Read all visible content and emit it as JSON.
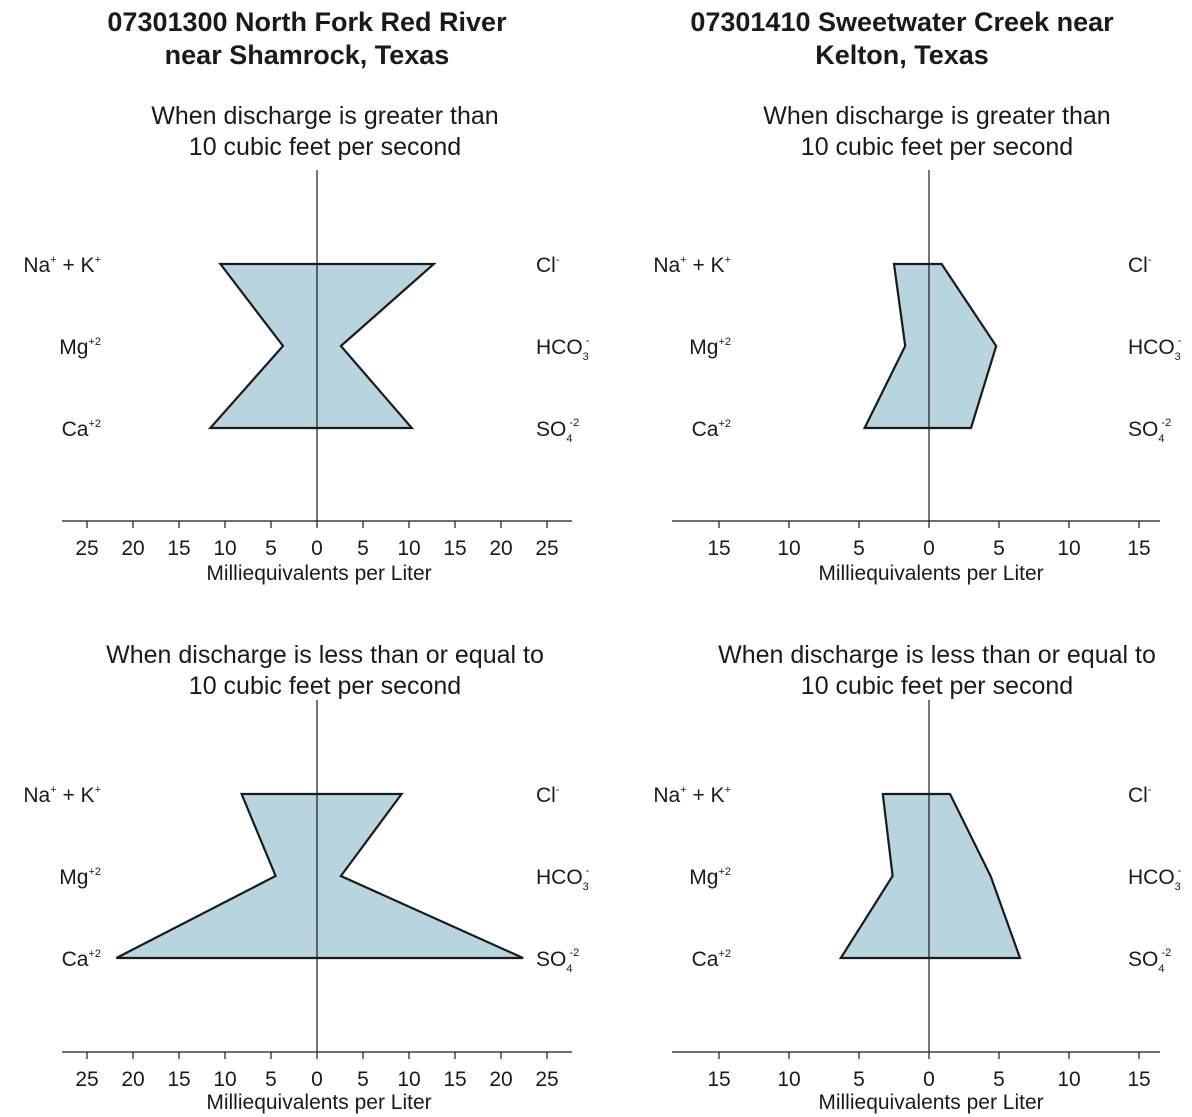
{
  "stations": [
    {
      "title_line1": "07301300  North Fork Red River",
      "title_line2": "near Shamrock, Texas"
    },
    {
      "title_line1": "07301410  Sweetwater Creek near",
      "title_line2": "Kelton, Texas"
    }
  ],
  "ion_labels": {
    "cations": [
      {
        "base": "Na",
        "sup": "+",
        "suffix": " + K",
        "suffix_sup": "+"
      },
      {
        "base": "Mg",
        "sup": "+2"
      },
      {
        "base": "Ca",
        "sup": "+2"
      }
    ],
    "anions": [
      {
        "base": "Cl",
        "sup": "-"
      },
      {
        "base": "HCO",
        "sub": "3",
        "sup": "-"
      },
      {
        "base": "SO",
        "sub": "4",
        "sup": "-2"
      }
    ]
  },
  "colors": {
    "fill": "#b8d4de",
    "stroke": "#1a1a1a"
  },
  "chart_data": [
    {
      "type": "stiff-diagram",
      "station": "07301300  North Fork Red River near Shamrock, Texas",
      "condition_line1": "When discharge is greater than",
      "condition_line2": "10 cubic feet per second",
      "xlabel": "Milliequivalents per Liter",
      "xticks": [
        25,
        20,
        15,
        10,
        5,
        0,
        5,
        10,
        15,
        20,
        25
      ],
      "xlim": [
        -25,
        25
      ],
      "cations_meq": {
        "Na+K": 10.5,
        "Mg": 3.7,
        "Ca": 11.6
      },
      "anions_meq": {
        "Cl": 12.7,
        "HCO3": 2.6,
        "SO4": 10.3
      }
    },
    {
      "type": "stiff-diagram",
      "station": "07301410  Sweetwater Creek near Kelton, Texas",
      "condition_line1": "When discharge is greater than",
      "condition_line2": "10 cubic feet per second",
      "xlabel": "Milliequivalents per Liter",
      "xticks": [
        15,
        10,
        5,
        0,
        5,
        10,
        15
      ],
      "xlim": [
        -15,
        15
      ],
      "cations_meq": {
        "Na+K": 2.5,
        "Mg": 1.7,
        "Ca": 4.6
      },
      "anions_meq": {
        "Cl": 0.9,
        "HCO3": 4.8,
        "SO4": 3.0
      }
    },
    {
      "type": "stiff-diagram",
      "station": "07301300  North Fork Red River near Shamrock, Texas",
      "condition_line1": "When discharge is less than or equal to",
      "condition_line2": "10 cubic feet per second",
      "xlabel": "Milliequivalents per Liter",
      "xticks": [
        25,
        20,
        15,
        10,
        5,
        0,
        5,
        10,
        15,
        20,
        25
      ],
      "xlim": [
        -25,
        25
      ],
      "cations_meq": {
        "Na+K": 8.2,
        "Mg": 4.5,
        "Ca": 21.8
      },
      "anions_meq": {
        "Cl": 9.2,
        "HCO3": 2.6,
        "SO4": 22.4
      }
    },
    {
      "type": "stiff-diagram",
      "station": "07301410  Sweetwater Creek near Kelton, Texas",
      "condition_line1": "When discharge is less than or equal to",
      "condition_line2": "10 cubic feet per second",
      "xlabel": "Milliequivalents per Liter",
      "xticks": [
        15,
        10,
        5,
        0,
        5,
        10,
        15
      ],
      "xlim": [
        -15,
        15
      ],
      "cations_meq": {
        "Na+K": 3.3,
        "Mg": 2.6,
        "Ca": 6.3
      },
      "anions_meq": {
        "Cl": 1.5,
        "HCO3": 4.4,
        "SO4": 6.5
      }
    }
  ]
}
